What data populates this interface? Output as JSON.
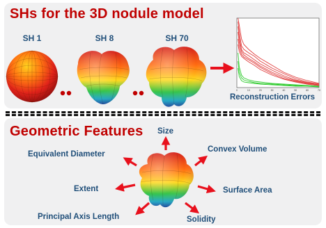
{
  "top": {
    "title": "SHs for the 3D nodule model",
    "shapes": [
      {
        "label": "SH 1"
      },
      {
        "label": "SH 8"
      },
      {
        "label": "SH 70"
      }
    ],
    "chart_caption": "Reconstruction Errors"
  },
  "bottom": {
    "title": "Geometric Features",
    "features": {
      "size": "Size",
      "equivalent_diameter": "Equivalent Diameter",
      "convex_volume": "Convex Volume",
      "extent": "Extent",
      "surface_area": "Surface Area",
      "principal_axis_length": "Principal Axis Length",
      "solidity": "Solidity"
    }
  },
  "colors": {
    "title": "#c00000",
    "label": "#1f4e79",
    "arrow": "#e8101c",
    "dots": "#c00000",
    "curve_red": "#e04040",
    "curve_green": "#33cc33"
  },
  "chart_data": {
    "type": "line",
    "title": "",
    "xlabel": "",
    "ylabel": "",
    "xlim": [
      0,
      70
    ],
    "ylim": [
      0,
      1
    ],
    "x_ticks": [
      "0",
      "10",
      "20",
      "30",
      "40",
      "50",
      "60",
      "70"
    ],
    "grid": false,
    "series": [
      {
        "color": "red",
        "x": [
          1,
          2,
          4,
          6,
          10,
          15,
          20,
          30,
          40,
          50,
          60,
          70
        ],
        "y": [
          1.0,
          0.9,
          0.7,
          0.62,
          0.55,
          0.48,
          0.42,
          0.32,
          0.22,
          0.15,
          0.1,
          0.06
        ]
      },
      {
        "color": "red",
        "x": [
          1,
          2,
          4,
          6,
          10,
          15,
          20,
          30,
          40,
          50,
          60,
          70
        ],
        "y": [
          0.95,
          0.8,
          0.6,
          0.55,
          0.5,
          0.45,
          0.38,
          0.28,
          0.2,
          0.13,
          0.08,
          0.05
        ]
      },
      {
        "color": "red",
        "x": [
          1,
          2,
          4,
          6,
          10,
          15,
          20,
          30,
          40,
          50,
          60,
          70
        ],
        "y": [
          0.88,
          0.72,
          0.55,
          0.5,
          0.46,
          0.4,
          0.34,
          0.25,
          0.17,
          0.11,
          0.07,
          0.04
        ]
      },
      {
        "color": "red",
        "x": [
          1,
          2,
          4,
          6,
          10,
          15,
          20,
          30,
          40,
          50,
          60,
          70
        ],
        "y": [
          0.8,
          0.65,
          0.52,
          0.47,
          0.42,
          0.37,
          0.31,
          0.22,
          0.15,
          0.1,
          0.06,
          0.04
        ]
      },
      {
        "color": "red",
        "x": [
          1,
          2,
          4,
          6,
          10,
          15,
          20,
          30,
          40,
          50,
          60,
          70
        ],
        "y": [
          0.7,
          0.58,
          0.48,
          0.44,
          0.4,
          0.35,
          0.29,
          0.2,
          0.13,
          0.09,
          0.05,
          0.03
        ]
      },
      {
        "color": "red",
        "x": [
          1,
          2,
          4,
          6,
          10,
          15,
          20,
          30,
          40,
          50,
          60,
          70
        ],
        "y": [
          0.62,
          0.52,
          0.45,
          0.42,
          0.37,
          0.32,
          0.26,
          0.18,
          0.12,
          0.08,
          0.05,
          0.03
        ]
      },
      {
        "color": "green",
        "x": [
          1,
          2,
          4,
          6,
          10,
          15,
          20,
          30,
          40,
          50,
          60,
          70
        ],
        "y": [
          0.5,
          0.3,
          0.18,
          0.14,
          0.11,
          0.09,
          0.08,
          0.06,
          0.05,
          0.04,
          0.03,
          0.02
        ]
      },
      {
        "color": "green",
        "x": [
          1,
          2,
          4,
          6,
          10,
          15,
          20,
          30,
          40,
          50,
          60,
          70
        ],
        "y": [
          0.38,
          0.22,
          0.14,
          0.11,
          0.09,
          0.07,
          0.06,
          0.05,
          0.04,
          0.03,
          0.02,
          0.02
        ]
      },
      {
        "color": "green",
        "x": [
          1,
          2,
          4,
          6,
          10,
          15,
          20,
          30,
          40,
          50,
          60,
          70
        ],
        "y": [
          0.28,
          0.16,
          0.1,
          0.08,
          0.07,
          0.06,
          0.05,
          0.04,
          0.03,
          0.02,
          0.02,
          0.01
        ]
      }
    ]
  }
}
